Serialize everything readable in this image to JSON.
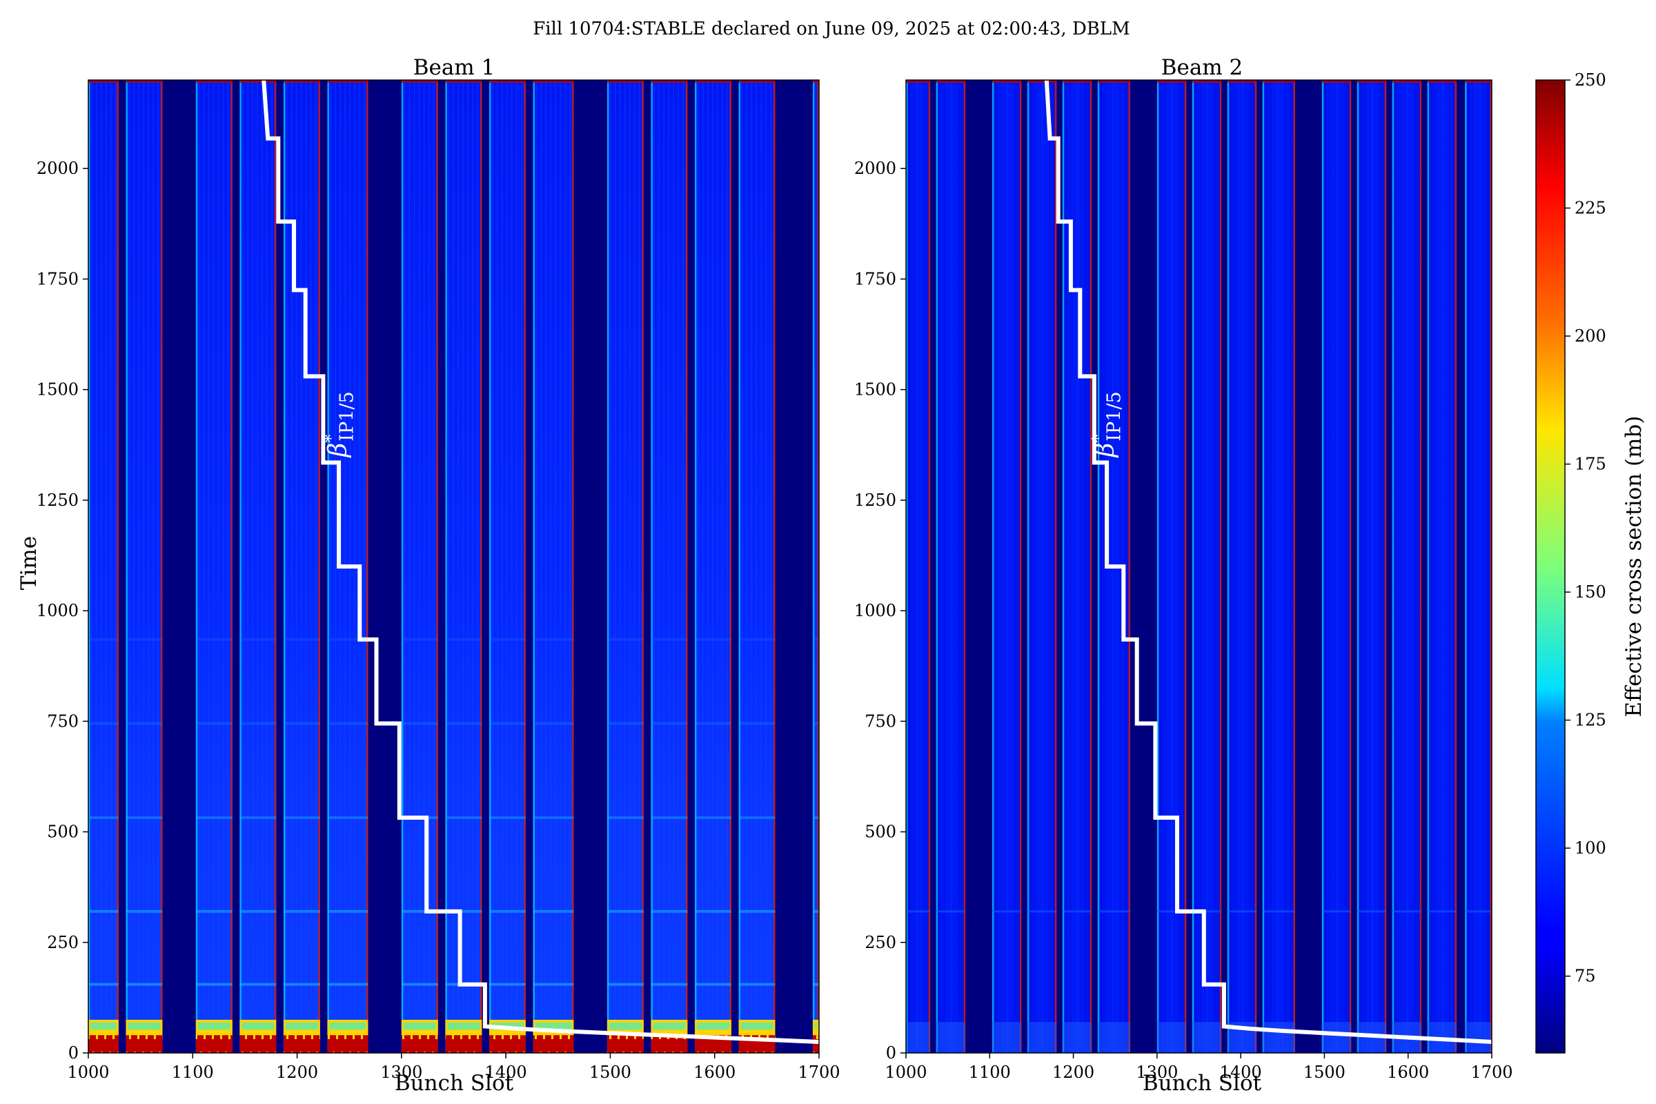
{
  "figure": {
    "title": "Fill 10704:STABLE declared on June 09, 2025 at 02:00:43, DBLM"
  },
  "chart_data": [
    {
      "type": "heatmap",
      "title": "Beam 1",
      "xlabel": "Bunch Slot",
      "ylabel": "Time",
      "xlim": [
        1000,
        1700
      ],
      "ylim": [
        0,
        2200
      ],
      "x_ticks": [
        "1000",
        "1100",
        "1200",
        "1300",
        "1400",
        "1500",
        "1600",
        "1700"
      ],
      "y_ticks": [
        "0",
        "250",
        "500",
        "750",
        "1000",
        "1250",
        "1500",
        "1750",
        "2000"
      ],
      "filled_bunch_trains": [
        [
          1000,
          1029
        ],
        [
          1036,
          1071
        ],
        [
          1103,
          1138
        ],
        [
          1145,
          1180
        ],
        [
          1187,
          1222
        ],
        [
          1229,
          1268
        ],
        [
          1300,
          1335
        ],
        [
          1342,
          1377
        ],
        [
          1384,
          1419
        ],
        [
          1426,
          1465
        ],
        [
          1497,
          1532
        ],
        [
          1539,
          1574
        ],
        [
          1581,
          1616
        ],
        [
          1623,
          1658
        ],
        [
          1694,
          1700
        ]
      ],
      "background_level_mb": 85,
      "initial_high_level_mb": 250,
      "annotation": {
        "symbol": "β",
        "superscript": "*",
        "subscript": "IP1/5"
      },
      "overlay_series": {
        "name": "",
        "color": "#ffffff",
        "points": [
          [
            1168,
            2200
          ],
          [
            1172,
            2068
          ],
          [
            1182,
            2068
          ],
          [
            1182,
            1880
          ],
          [
            1197,
            1880
          ],
          [
            1197,
            1725
          ],
          [
            1208,
            1725
          ],
          [
            1208,
            1530
          ],
          [
            1225,
            1530
          ],
          [
            1225,
            1335
          ],
          [
            1240,
            1335
          ],
          [
            1240,
            1100
          ],
          [
            1260,
            1100
          ],
          [
            1260,
            935
          ],
          [
            1276,
            935
          ],
          [
            1276,
            745
          ],
          [
            1298,
            745
          ],
          [
            1298,
            532
          ],
          [
            1324,
            532
          ],
          [
            1324,
            320
          ],
          [
            1356,
            320
          ],
          [
            1356,
            155
          ],
          [
            1380,
            155
          ],
          [
            1380,
            60
          ],
          [
            1410,
            55
          ],
          [
            1450,
            50
          ],
          [
            1500,
            45
          ],
          [
            1550,
            40
          ],
          [
            1600,
            35
          ],
          [
            1650,
            30
          ],
          [
            1700,
            25
          ]
        ]
      }
    },
    {
      "type": "heatmap",
      "title": "Beam 2",
      "xlabel": "Bunch Slot",
      "ylabel": "",
      "xlim": [
        1000,
        1700
      ],
      "ylim": [
        0,
        2200
      ],
      "x_ticks": [
        "1000",
        "1100",
        "1200",
        "1300",
        "1400",
        "1500",
        "1600",
        "1700"
      ],
      "y_ticks": [
        "0",
        "250",
        "500",
        "750",
        "1000",
        "1250",
        "1500",
        "1750",
        "2000"
      ],
      "filled_bunch_trains": [
        [
          1000,
          1029
        ],
        [
          1036,
          1071
        ],
        [
          1103,
          1138
        ],
        [
          1145,
          1180
        ],
        [
          1187,
          1222
        ],
        [
          1229,
          1268
        ],
        [
          1300,
          1335
        ],
        [
          1342,
          1377
        ],
        [
          1384,
          1419
        ],
        [
          1426,
          1465
        ],
        [
          1497,
          1532
        ],
        [
          1539,
          1574
        ],
        [
          1581,
          1616
        ],
        [
          1623,
          1658
        ],
        [
          1668,
          1700
        ]
      ],
      "background_level_mb": 85,
      "initial_high_level_mb": 95,
      "annotation": {
        "symbol": "β",
        "superscript": "*",
        "subscript": "IP1/5"
      },
      "overlay_series": {
        "name": "",
        "color": "#ffffff",
        "points": [
          [
            1168,
            2200
          ],
          [
            1172,
            2068
          ],
          [
            1182,
            2068
          ],
          [
            1182,
            1880
          ],
          [
            1197,
            1880
          ],
          [
            1197,
            1725
          ],
          [
            1208,
            1725
          ],
          [
            1208,
            1530
          ],
          [
            1225,
            1530
          ],
          [
            1225,
            1335
          ],
          [
            1240,
            1335
          ],
          [
            1240,
            1100
          ],
          [
            1260,
            1100
          ],
          [
            1260,
            935
          ],
          [
            1276,
            935
          ],
          [
            1276,
            745
          ],
          [
            1298,
            745
          ],
          [
            1298,
            532
          ],
          [
            1324,
            532
          ],
          [
            1324,
            320
          ],
          [
            1356,
            320
          ],
          [
            1356,
            155
          ],
          [
            1380,
            155
          ],
          [
            1380,
            60
          ],
          [
            1410,
            55
          ],
          [
            1450,
            50
          ],
          [
            1500,
            45
          ],
          [
            1550,
            40
          ],
          [
            1600,
            35
          ],
          [
            1650,
            30
          ],
          [
            1700,
            25
          ]
        ]
      }
    }
  ],
  "colorbar": {
    "label": "Effective cross section (mb)",
    "range": [
      60,
      250
    ],
    "ticks": [
      "75",
      "100",
      "125",
      "150",
      "175",
      "200",
      "225",
      "250"
    ],
    "colormap": "jet"
  }
}
